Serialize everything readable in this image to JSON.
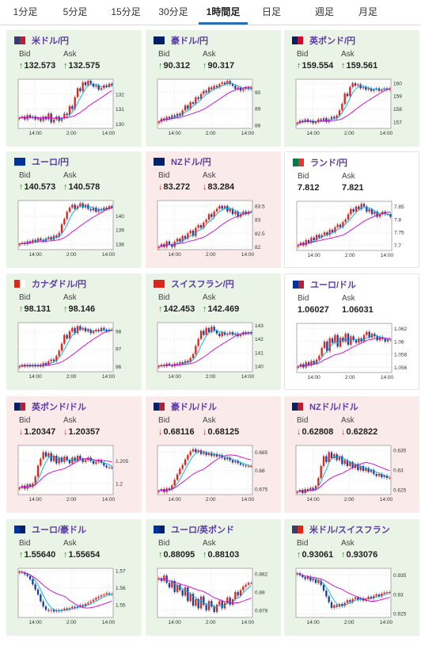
{
  "tabs": [
    "1分足",
    "5分足",
    "15分足",
    "30分足",
    "1時間足",
    "日足",
    "週足",
    "月足"
  ],
  "active_tab": 4,
  "labels": {
    "bid": "Bid",
    "ask": "Ask"
  },
  "arrows": {
    "up": "↑",
    "down": "↓"
  },
  "colors": {
    "up_bg": "#eaf4e6",
    "down_bg": "#fbeaea",
    "candle_up": "#e0261b",
    "candle_down": "#1a3fa0",
    "ma_fast": "#00aadd",
    "ma_slow": "#d100d1",
    "title": "#5b3aa8",
    "active_tab": "#2a6fb3"
  },
  "pairs": [
    {
      "name": "米ドル/円",
      "flag": [
        "#3c3b6e",
        "#b22234"
      ],
      "bg": "up",
      "bid": "132.573",
      "ask": "132.575",
      "bid_dir": "up",
      "ask_dir": "up",
      "chart_data": {
        "type": "candlestick",
        "x_ticks": [
          "14:00",
          "2:00",
          "14:00"
        ],
        "y_ticks": [
          "132",
          "131",
          "130"
        ],
        "ylim": [
          129.7,
          133.0
        ],
        "closes": [
          130.4,
          130.5,
          130.3,
          130.6,
          130.4,
          130.5,
          130.3,
          130.4,
          130.2,
          130.5,
          130.3,
          130.7,
          130.1,
          130.3,
          130.5,
          130.2,
          130.4,
          130.7,
          130.6,
          131.2,
          131.0,
          131.8,
          132.4,
          132.2,
          132.8,
          132.6,
          132.9,
          132.7,
          132.5,
          132.6,
          132.3,
          132.4,
          132.6,
          132.5,
          132.7,
          132.6
        ]
      }
    },
    {
      "name": "豪ドル/円",
      "flag": [
        "#012169",
        "#012169"
      ],
      "bg": "up",
      "bid": "90.312",
      "ask": "90.317",
      "bid_dir": "up",
      "ask_dir": "up",
      "chart_data": {
        "type": "candlestick",
        "x_ticks": [
          "14:00",
          "2:00",
          "14:00"
        ],
        "y_ticks": [
          "90",
          "89",
          "88"
        ],
        "ylim": [
          87.8,
          90.8
        ],
        "closes": [
          88.2,
          88.4,
          88.3,
          88.5,
          88.4,
          88.6,
          88.5,
          88.7,
          88.6,
          88.9,
          89.2,
          89.0,
          89.4,
          89.3,
          89.7,
          89.6,
          89.9,
          90.1,
          90.0,
          90.3,
          90.2,
          90.4,
          90.3,
          90.5,
          90.6,
          90.5,
          90.7,
          90.5,
          90.4,
          90.2,
          90.3,
          90.1,
          90.2,
          90.3,
          90.2,
          90.3
        ]
      }
    },
    {
      "name": "英ポンド/円",
      "flag": [
        "#012169",
        "#c8102e"
      ],
      "bg": "up",
      "bid": "159.554",
      "ask": "159.561",
      "bid_dir": "up",
      "ask_dir": "up",
      "chart_data": {
        "type": "candlestick",
        "x_ticks": [
          "14:00",
          "2:00",
          "14:00"
        ],
        "y_ticks": [
          "160",
          "159",
          "158",
          "157"
        ],
        "ylim": [
          156.5,
          160.3
        ],
        "closes": [
          156.9,
          157.1,
          157.0,
          157.2,
          157.0,
          157.1,
          156.9,
          157.0,
          157.2,
          157.1,
          157.3,
          157.0,
          157.2,
          157.4,
          157.3,
          157.5,
          157.9,
          158.4,
          159.2,
          159.0,
          159.7,
          160.0,
          159.8,
          159.9,
          159.6,
          159.7,
          159.5,
          159.6,
          159.4,
          159.5,
          159.6,
          159.4,
          159.5,
          159.6,
          159.5,
          159.6
        ]
      }
    },
    {
      "name": "ユーロ/円",
      "flag": [
        "#003399",
        "#003399"
      ],
      "bg": "up",
      "bid": "140.573",
      "ask": "140.578",
      "bid_dir": "up",
      "ask_dir": "up",
      "chart_data": {
        "type": "candlestick",
        "x_ticks": [
          "14:00",
          "2:00",
          "14:00"
        ],
        "y_ticks": [
          "140",
          "139",
          "138"
        ],
        "ylim": [
          137.6,
          141.1
        ],
        "closes": [
          138.0,
          138.1,
          138.0,
          138.2,
          138.1,
          138.3,
          138.2,
          138.4,
          138.3,
          138.2,
          138.4,
          138.5,
          138.3,
          138.6,
          138.5,
          138.8,
          139.4,
          139.8,
          140.3,
          140.6,
          140.8,
          140.5,
          140.7,
          140.9,
          140.6,
          140.8,
          140.5,
          140.4,
          140.6,
          140.3,
          140.5,
          140.4,
          140.6,
          140.5,
          140.7,
          140.6
        ]
      }
    },
    {
      "name": "NZドル/円",
      "flag": [
        "#012169",
        "#012169"
      ],
      "bg": "down",
      "bid": "83.272",
      "ask": "83.284",
      "bid_dir": "down",
      "ask_dir": "down",
      "chart_data": {
        "type": "candlestick",
        "x_ticks": [
          "14:00",
          "2:00",
          "14:00"
        ],
        "y_ticks": [
          "83.5",
          "83",
          "82.5",
          "82"
        ],
        "ylim": [
          81.9,
          83.7
        ],
        "closes": [
          82.0,
          82.1,
          82.0,
          82.2,
          82.1,
          82.0,
          82.2,
          82.3,
          82.2,
          82.4,
          82.3,
          82.5,
          82.6,
          82.4,
          82.7,
          82.8,
          82.7,
          82.9,
          83.0,
          83.2,
          83.1,
          83.3,
          83.4,
          83.5,
          83.4,
          83.5,
          83.3,
          83.4,
          83.2,
          83.3,
          83.1,
          83.2,
          83.3,
          83.2,
          83.3,
          83.3
        ]
      }
    },
    {
      "name": "ランド/円",
      "flag": [
        "#007a4d",
        "#de3831"
      ],
      "bg": "neutral",
      "bid": "7.812",
      "ask": "7.821",
      "bid_dir": "",
      "ask_dir": "",
      "chart_data": {
        "type": "candlestick",
        "x_ticks": [
          "14:00",
          "2:00",
          "14:00"
        ],
        "y_ticks": [
          "7.85",
          "7.8",
          "7.75",
          "7.7"
        ],
        "ylim": [
          7.68,
          7.87
        ],
        "closes": [
          7.7,
          7.71,
          7.7,
          7.72,
          7.71,
          7.73,
          7.72,
          7.74,
          7.73,
          7.74,
          7.75,
          7.74,
          7.76,
          7.75,
          7.77,
          7.78,
          7.77,
          7.79,
          7.8,
          7.82,
          7.84,
          7.83,
          7.85,
          7.84,
          7.86,
          7.85,
          7.83,
          7.84,
          7.82,
          7.83,
          7.81,
          7.82,
          7.83,
          7.82,
          7.82,
          7.81
        ]
      }
    },
    {
      "name": "カナダドル/円",
      "flag": [
        "#d52b1e",
        "#ffffff"
      ],
      "bg": "up",
      "bid": "98.131",
      "ask": "98.146",
      "bid_dir": "up",
      "ask_dir": "up",
      "chart_data": {
        "type": "candlestick",
        "x_ticks": [
          "14:00",
          "2:00",
          "14:00"
        ],
        "y_ticks": [
          "98",
          "97",
          "96"
        ],
        "ylim": [
          95.7,
          98.5
        ],
        "closes": [
          96.0,
          96.1,
          96.0,
          96.1,
          96.0,
          96.1,
          96.0,
          96.1,
          96.0,
          96.2,
          96.1,
          96.3,
          96.4,
          96.3,
          96.6,
          96.9,
          97.3,
          97.8,
          97.6,
          98.0,
          98.2,
          97.9,
          98.3,
          98.1,
          98.2,
          98.0,
          98.1,
          97.9,
          98.0,
          98.1,
          98.0,
          98.2,
          98.1,
          98.0,
          98.1,
          98.1
        ]
      }
    },
    {
      "name": "スイスフラン/円",
      "flag": [
        "#da291c",
        "#da291c"
      ],
      "bg": "up",
      "bid": "142.453",
      "ask": "142.469",
      "bid_dir": "up",
      "ask_dir": "up",
      "chart_data": {
        "type": "candlestick",
        "x_ticks": [
          "14:00",
          "2:00",
          "14:00"
        ],
        "y_ticks": [
          "143",
          "142",
          "141",
          "140"
        ],
        "ylim": [
          139.6,
          143.2
        ],
        "closes": [
          140.0,
          140.1,
          140.0,
          140.2,
          140.1,
          140.0,
          140.2,
          140.1,
          140.3,
          140.2,
          140.4,
          140.3,
          140.6,
          140.9,
          141.5,
          142.0,
          142.6,
          142.3,
          142.8,
          142.5,
          142.9,
          142.6,
          142.4,
          142.2,
          142.5,
          142.3,
          142.4,
          142.5,
          142.3,
          142.4,
          142.2,
          142.3,
          142.5,
          142.4,
          142.5,
          142.4
        ]
      }
    },
    {
      "name": "ユーロ/ドル",
      "flag": [
        "#003399",
        "#b22234"
      ],
      "bg": "neutral",
      "bid": "1.06027",
      "ask": "1.06031",
      "bid_dir": "",
      "ask_dir": "",
      "chart_data": {
        "type": "candlestick",
        "x_ticks": [
          "14:00",
          "2:00",
          "14:00"
        ],
        "y_ticks": [
          "1.062",
          "1.06",
          "1.058",
          "1.056"
        ],
        "ylim": [
          1.0552,
          1.0628
        ],
        "closes": [
          1.0561,
          1.0565,
          1.056,
          1.0568,
          1.0563,
          1.057,
          1.0566,
          1.0572,
          1.0578,
          1.059,
          1.06,
          1.0585,
          1.0605,
          1.0598,
          1.061,
          1.0592,
          1.0606,
          1.06,
          1.0612,
          1.0595,
          1.0608,
          1.0602,
          1.0598,
          1.0605,
          1.06,
          1.061,
          1.0615,
          1.0606,
          1.0612,
          1.0608,
          1.0602,
          1.0607,
          1.0604,
          1.06,
          1.0603,
          1.0603
        ]
      }
    },
    {
      "name": "英ポンド/ドル",
      "flag": [
        "#012169",
        "#b22234"
      ],
      "bg": "down",
      "bid": "1.20347",
      "ask": "1.20357",
      "bid_dir": "down",
      "ask_dir": "down",
      "chart_data": {
        "type": "candlestick",
        "x_ticks": [
          "14:00",
          "2:00",
          "14:00"
        ],
        "y_ticks": [
          "1.205",
          "1.2"
        ],
        "ylim": [
          1.1975,
          1.2085
        ],
        "closes": [
          1.199,
          1.1995,
          1.1988,
          1.1998,
          1.1992,
          1.2,
          1.2015,
          1.204,
          1.2055,
          1.207,
          1.206,
          1.2068,
          1.205,
          1.2062,
          1.2045,
          1.2058,
          1.2048,
          1.206,
          1.2052,
          1.2045,
          1.2058,
          1.205,
          1.2062,
          1.2055,
          1.2048,
          1.2052,
          1.2058,
          1.205,
          1.2044,
          1.2048,
          1.2052,
          1.2046,
          1.204,
          1.2036,
          1.2036,
          1.2035
        ]
      }
    },
    {
      "name": "豪ドル/ドル",
      "flag": [
        "#012169",
        "#b22234"
      ],
      "bg": "down",
      "bid": "0.68116",
      "ask": "0.68125",
      "bid_dir": "down",
      "ask_dir": "down",
      "chart_data": {
        "type": "candlestick",
        "x_ticks": [
          "14:00",
          "2:00",
          "14:00"
        ],
        "y_ticks": [
          "0.685",
          "0.68",
          "0.675"
        ],
        "ylim": [
          0.6735,
          0.6868
        ],
        "closes": [
          0.6745,
          0.675,
          0.6742,
          0.6752,
          0.6748,
          0.676,
          0.6775,
          0.679,
          0.6805,
          0.6815,
          0.683,
          0.6842,
          0.6852,
          0.6858,
          0.685,
          0.6855,
          0.6845,
          0.685,
          0.6842,
          0.6848,
          0.684,
          0.6845,
          0.6838,
          0.6842,
          0.6835,
          0.683,
          0.6835,
          0.6828,
          0.6822,
          0.6826,
          0.682,
          0.6816,
          0.6814,
          0.6812,
          0.6812,
          0.6812
        ]
      }
    },
    {
      "name": "NZドル/ドル",
      "flag": [
        "#012169",
        "#b22234"
      ],
      "bg": "down",
      "bid": "0.62808",
      "ask": "0.62822",
      "bid_dir": "down",
      "ask_dir": "down",
      "chart_data": {
        "type": "candlestick",
        "x_ticks": [
          "14:00",
          "2:00",
          "14:00"
        ],
        "y_ticks": [
          "0.635",
          "0.63",
          "0.625"
        ],
        "ylim": [
          0.6238,
          0.6362
        ],
        "closes": [
          0.6245,
          0.625,
          0.6242,
          0.6252,
          0.6248,
          0.6255,
          0.625,
          0.626,
          0.628,
          0.631,
          0.6335,
          0.632,
          0.6345,
          0.633,
          0.634,
          0.6325,
          0.6335,
          0.6315,
          0.6325,
          0.631,
          0.632,
          0.6305,
          0.6315,
          0.63,
          0.631,
          0.6298,
          0.6305,
          0.6295,
          0.63,
          0.629,
          0.6285,
          0.629,
          0.6282,
          0.6286,
          0.628,
          0.6281
        ]
      }
    },
    {
      "name": "ユーロ/豪ドル",
      "flag": [
        "#003399",
        "#012169"
      ],
      "bg": "up",
      "bid": "1.55640",
      "ask": "1.55654",
      "bid_dir": "up",
      "ask_dir": "up",
      "chart_data": {
        "type": "candlestick",
        "x_ticks": [
          "14:00",
          "2:00",
          "14:00"
        ],
        "y_ticks": [
          "1.57",
          "1.56",
          "1.55"
        ],
        "ylim": [
          1.5425,
          1.5715
        ],
        "closes": [
          1.5695,
          1.569,
          1.568,
          1.567,
          1.565,
          1.562,
          1.559,
          1.556,
          1.552,
          1.549,
          1.547,
          1.5465,
          1.547,
          1.546,
          1.5468,
          1.5462,
          1.547,
          1.5478,
          1.5472,
          1.548,
          1.5488,
          1.5482,
          1.549,
          1.5498,
          1.5492,
          1.5505,
          1.5512,
          1.552,
          1.553,
          1.554,
          1.5548,
          1.5555,
          1.556,
          1.5568,
          1.5562,
          1.5564
        ]
      }
    },
    {
      "name": "ユーロ/英ポンド",
      "flag": [
        "#003399",
        "#012169"
      ],
      "bg": "up",
      "bid": "0.88095",
      "ask": "0.88103",
      "bid_dir": "up",
      "ask_dir": "up",
      "chart_data": {
        "type": "candlestick",
        "x_ticks": [
          "14:00",
          "2:00",
          "14:00"
        ],
        "y_ticks": [
          "0.882",
          "0.88",
          "0.878"
        ],
        "ylim": [
          0.8772,
          0.8826
        ],
        "closes": [
          0.8815,
          0.8812,
          0.8818,
          0.881,
          0.8805,
          0.8812,
          0.88,
          0.8808,
          0.8802,
          0.8796,
          0.8805,
          0.879,
          0.8798,
          0.8785,
          0.8792,
          0.8782,
          0.8795,
          0.8786,
          0.878,
          0.879,
          0.8784,
          0.8778,
          0.8786,
          0.879,
          0.8782,
          0.8788,
          0.8794,
          0.8786,
          0.8792,
          0.88,
          0.8796,
          0.8802,
          0.8806,
          0.8808,
          0.881,
          0.881
        ]
      }
    },
    {
      "name": "米ドル/スイスフラン",
      "flag": [
        "#3c3b6e",
        "#da291c"
      ],
      "bg": "up",
      "bid": "0.93061",
      "ask": "0.93076",
      "bid_dir": "up",
      "ask_dir": "up",
      "chart_data": {
        "type": "candlestick",
        "x_ticks": [
          "14:00",
          "2:00",
          "14:00"
        ],
        "y_ticks": [
          "0.935",
          "0.93",
          "0.925"
        ],
        "ylim": [
          0.924,
          0.9368
        ],
        "closes": [
          0.9355,
          0.935,
          0.9345,
          0.934,
          0.9346,
          0.9336,
          0.934,
          0.933,
          0.9336,
          0.9325,
          0.931,
          0.9295,
          0.928,
          0.9265,
          0.9272,
          0.9268,
          0.9275,
          0.927,
          0.9278,
          0.9285,
          0.928,
          0.9288,
          0.9292,
          0.9286,
          0.929,
          0.9284,
          0.9288,
          0.9294,
          0.929,
          0.9296,
          0.93,
          0.9295,
          0.9302,
          0.9305,
          0.9306,
          0.9306
        ]
      }
    }
  ]
}
